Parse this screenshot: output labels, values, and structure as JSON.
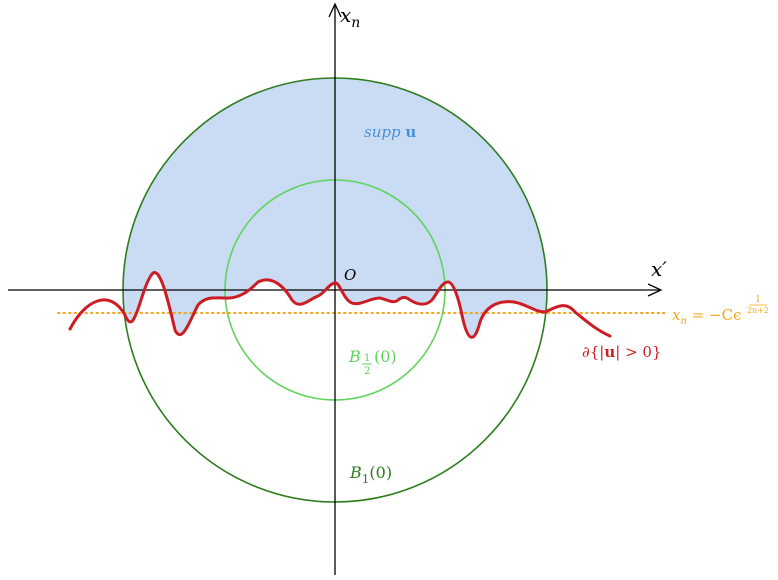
{
  "colors": {
    "axis": "#000000",
    "support_fill": "#c9dcf3",
    "support_label": "#4a8fd6",
    "outer_ball": "#2e7d1f",
    "inner_ball": "#5fd35b",
    "free_boundary": "#cc1d24",
    "level_line": "#f3a81c"
  },
  "labels": {
    "vertical_axis": {
      "var": "x",
      "sub": "n"
    },
    "horizontal_axis": "x′",
    "origin": "O",
    "support": {
      "prefix": "supp ",
      "bold": "u"
    },
    "inner_ball": {
      "letter": "B",
      "sub_num": "1",
      "sub_den": "2",
      "arg": "(0)"
    },
    "outer_ball": {
      "letter": "B",
      "sub": "1",
      "arg": "(0)"
    },
    "free_boundary": {
      "prefix": "∂{|",
      "bold": "u",
      "suffix": "| > 0}"
    },
    "level_line": {
      "lhs_var": "x",
      "lhs_sub": "n",
      "rhs": " = −Cϵ",
      "exp_num": "1",
      "exp_den": "2n+2"
    }
  }
}
